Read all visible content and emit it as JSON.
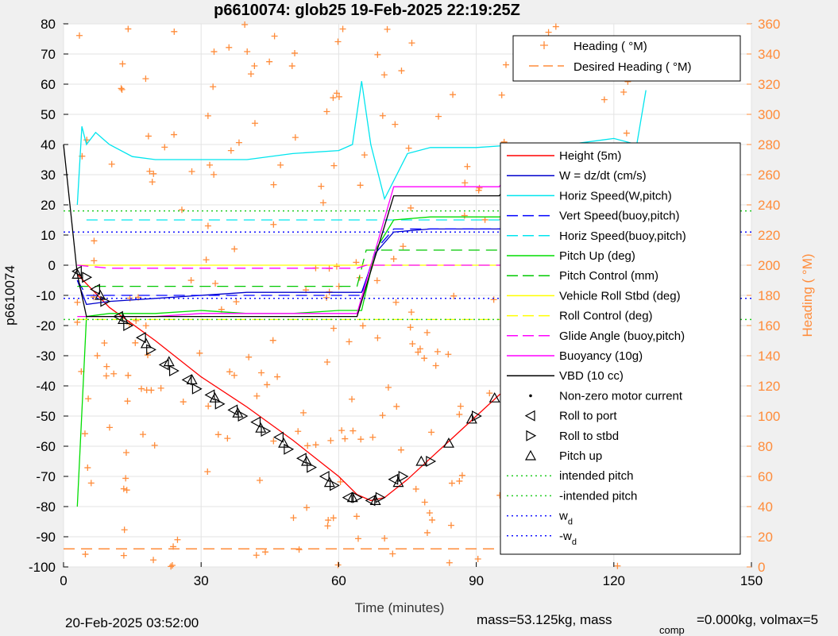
{
  "chart_data": {
    "type": "line",
    "title": "p6610074: glob25 19-Feb-2025 22:19:25Z",
    "xlabel": "Time (minutes)",
    "ylabel": "p6610074",
    "y2label": "Heading (  °M)",
    "xlim": [
      0,
      150
    ],
    "ylim": [
      -100,
      80
    ],
    "y2lim": [
      0,
      360
    ],
    "x_ticks": [
      0,
      30,
      60,
      90,
      120,
      150
    ],
    "y_ticks": [
      -100,
      -90,
      -80,
      -70,
      -60,
      -50,
      -40,
      -30,
      -20,
      -10,
      0,
      10,
      20,
      30,
      40,
      50,
      60,
      70,
      80
    ],
    "y2_ticks": [
      0,
      20,
      40,
      60,
      80,
      100,
      120,
      140,
      160,
      180,
      200,
      220,
      240,
      260,
      280,
      300,
      320,
      340,
      360
    ],
    "grid": true,
    "legend_main_placement": "right",
    "legend_heading_placement": "top-right",
    "colors": {
      "height": "#ff0000",
      "w": "#0000cc",
      "horiz_speed": "#00e5ee",
      "vert_speed_buoy": "#0000ff",
      "pitch_up": "#00dd00",
      "pitch_control": "#00c800",
      "roll": "#ffff00",
      "glide": "#ff00ff",
      "buoyancy": "#ff00ff",
      "vbd": "#000000",
      "heading": "#ff8c3a",
      "intended": "#22cc22",
      "wd": "#1010ff"
    },
    "series": [
      {
        "name": "Height (5m)",
        "style": "solid",
        "color": "#ff0000",
        "x": [
          3,
          10,
          20,
          30,
          40,
          50,
          60,
          64,
          67,
          70,
          75,
          80,
          85,
          90,
          95,
          100,
          105,
          110,
          115,
          120,
          125,
          127
        ],
        "y": [
          -3,
          -14,
          -25,
          -37,
          -47,
          -58,
          -70,
          -76,
          -78,
          -77,
          -71,
          -64,
          -57,
          -50,
          -43,
          -37,
          -31,
          -24,
          -17,
          -10,
          -3,
          -1
        ]
      },
      {
        "name": "W = dz/dt (cm/s)",
        "style": "solid",
        "color": "#0000cc",
        "x": [
          3,
          5,
          10,
          20,
          30,
          40,
          50,
          60,
          65,
          68,
          72,
          80,
          90,
          100,
          110,
          120,
          127
        ],
        "y": [
          -5,
          -13,
          -12,
          -11,
          -10,
          -9,
          -9,
          -9,
          -9,
          4,
          11,
          12,
          12,
          12,
          12,
          12,
          12
        ]
      },
      {
        "name": "Horiz Speed(W,pitch)",
        "style": "solid",
        "color": "#00e5ee",
        "x": [
          3,
          4,
          5,
          7,
          10,
          15,
          20,
          30,
          40,
          50,
          60,
          63,
          65,
          67,
          70,
          75,
          80,
          90,
          100,
          110,
          120,
          125,
          127
        ],
        "y": [
          20,
          46,
          40,
          44,
          40,
          36,
          35,
          35,
          35,
          37,
          38,
          40,
          61,
          40,
          22,
          37,
          39,
          39,
          40,
          40,
          42,
          40,
          58
        ]
      },
      {
        "name": "Vert Speed(buoy,pitch)",
        "style": "dashed",
        "color": "#0000ff",
        "x": [
          3,
          5,
          10,
          20,
          30,
          40,
          50,
          60,
          65,
          68,
          72,
          80,
          90,
          100,
          110,
          120,
          127
        ],
        "y": [
          -5,
          -10,
          -10,
          -10,
          -10,
          -10,
          -10,
          -10,
          -10,
          5,
          12,
          12,
          12,
          12,
          12,
          12,
          12
        ]
      },
      {
        "name": "Horiz Speed(buoy,pitch)",
        "style": "dashed",
        "color": "#00e5ee",
        "x": [
          5,
          30,
          64,
          66,
          70,
          127
        ],
        "y": [
          15,
          15,
          15,
          15,
          15,
          15
        ]
      },
      {
        "name": "Pitch Up (deg)",
        "style": "solid",
        "color": "#00dd00",
        "x": [
          3,
          5,
          10,
          20,
          30,
          40,
          50,
          60,
          65,
          68,
          72,
          80,
          90,
          100,
          110,
          120,
          127
        ],
        "y": [
          -80,
          -17,
          -16,
          -16,
          -15,
          -16,
          -16,
          -15,
          -15,
          5,
          15,
          16,
          16,
          16,
          15,
          16,
          16
        ]
      },
      {
        "name": "Pitch Control (mm)",
        "style": "dashed",
        "color": "#00c800",
        "x": [
          3,
          10,
          64,
          66,
          70,
          127
        ],
        "y": [
          -7,
          -7,
          -7,
          5,
          5,
          5
        ]
      },
      {
        "name": "Vehicle Roll Stbd (deg)",
        "style": "solid",
        "color": "#ffff00",
        "x": [
          3,
          10,
          20,
          30,
          40,
          50,
          60,
          70,
          80,
          90,
          100,
          110,
          120,
          127
        ],
        "y": [
          0,
          0,
          0,
          0,
          0,
          0,
          0,
          0,
          0,
          0,
          0,
          0,
          0,
          0
        ]
      },
      {
        "name": "Roll Control (deg)",
        "style": "dashed",
        "color": "#ffff00",
        "x": [
          3,
          127
        ],
        "y": [
          -18,
          -18
        ]
      },
      {
        "name": "Glide Angle (buoy,pitch)",
        "style": "dashed",
        "color": "#ff00ff",
        "x": [
          3,
          10,
          20,
          40,
          60,
          64,
          66,
          70,
          127
        ],
        "y": [
          0,
          -1,
          -1,
          -1,
          -1,
          -1,
          0,
          0,
          0
        ]
      },
      {
        "name": "Buoyancy (10g)",
        "style": "solid",
        "color": "#ff00ff",
        "x": [
          3,
          10,
          20,
          30,
          40,
          50,
          60,
          64,
          72,
          95,
          96,
          127
        ],
        "y": [
          -17,
          -17,
          -17,
          -16,
          -16,
          -16,
          -16,
          -16,
          26,
          26,
          28,
          28
        ]
      },
      {
        "name": "VBD (10 cc)",
        "style": "solid",
        "color": "#000000",
        "x": [
          0,
          3,
          5,
          10,
          20,
          30,
          40,
          50,
          60,
          64,
          72,
          95,
          96,
          127
        ],
        "y": [
          40,
          -3,
          -17,
          -17,
          -17,
          -17,
          -17,
          -17,
          -17,
          -17,
          23,
          23,
          25,
          25
        ]
      },
      {
        "name": "intended pitch",
        "style": "dotted",
        "color": "#22cc22",
        "x": [
          0,
          150
        ],
        "y": [
          18,
          18
        ]
      },
      {
        "name": "-intended pitch",
        "style": "dotted",
        "color": "#22cc22",
        "x": [
          0,
          150
        ],
        "y": [
          -18,
          -18
        ]
      },
      {
        "name": "w_d",
        "style": "dotted",
        "color": "#1010ff",
        "x": [
          0,
          150
        ],
        "y": [
          11,
          11
        ]
      },
      {
        "name": "-w_d",
        "style": "dotted",
        "color": "#1010ff",
        "x": [
          0,
          150
        ],
        "y": [
          -11,
          -11
        ]
      }
    ],
    "markers": {
      "roll_to_port": {
        "name": "Roll to port",
        "x": [
          3,
          7,
          12,
          17,
          22,
          27,
          32,
          37,
          42,
          47,
          52,
          57,
          62,
          67,
          72
        ],
        "y": [
          -2,
          -8,
          -17,
          -24,
          -33,
          -38,
          -43,
          -48,
          -52,
          -57,
          -64,
          -70,
          -77,
          -78,
          -71
        ]
      },
      "roll_to_stbd": {
        "name": "Roll to stbd",
        "x": [
          5,
          9,
          14,
          19,
          24,
          29,
          34,
          39,
          44,
          49,
          54,
          59,
          64,
          69,
          74,
          80,
          90,
          100,
          110,
          120,
          126
        ],
        "y": [
          -4,
          -12,
          -20,
          -28,
          -35,
          -41,
          -46,
          -50,
          -55,
          -61,
          -67,
          -73,
          -77,
          -77,
          -70,
          -65,
          -50,
          -37,
          -24,
          -10,
          -1
        ]
      },
      "pitch_up": {
        "name": "Pitch up",
        "x": [
          3,
          8,
          13,
          18,
          23,
          28,
          33,
          38,
          43,
          48,
          53,
          58,
          63,
          68,
          73,
          78,
          84,
          89,
          94,
          99,
          104,
          109,
          114,
          119,
          124
        ],
        "y": [
          -3,
          -10,
          -18,
          -26,
          -32,
          -38,
          -44,
          -49,
          -54,
          -59,
          -65,
          -72,
          -77,
          -78,
          -72,
          -65,
          -59,
          -51,
          -44,
          -38,
          -32,
          -25,
          -19,
          -12,
          -4
        ]
      }
    },
    "heading_desired": {
      "name": "Desired Heading (    °M)",
      "color": "#ff8c3a",
      "style": "dashed",
      "values_deg": [
        12
      ]
    },
    "legend_main": [
      "Height (5m)",
      "W = dz/dt (cm/s)",
      "Horiz Speed(W,pitch)",
      "Vert Speed(buoy,pitch)",
      "Horiz Speed(buoy,pitch)",
      "Pitch Up (deg)",
      "Pitch Control (mm)",
      "Vehicle Roll Stbd (deg)",
      "Roll Control (deg)",
      "Glide Angle (buoy,pitch)",
      "Buoyancy (10g)",
      "VBD (10 cc)",
      "Non-zero motor current",
      "Roll to port",
      "Roll to stbd",
      "Pitch up",
      "intended pitch",
      "-intended pitch",
      "w",
      "-w"
    ],
    "legend_heading": [
      "Heading (    °M)",
      "Desired Heading (    °M)"
    ]
  },
  "footer": {
    "date": "20-Feb-2025 03:52:00",
    "mass": "mass=53.125kg, mass",
    "comp_sub": "comp",
    "volmax": "=0.000kg, volmax=5"
  }
}
